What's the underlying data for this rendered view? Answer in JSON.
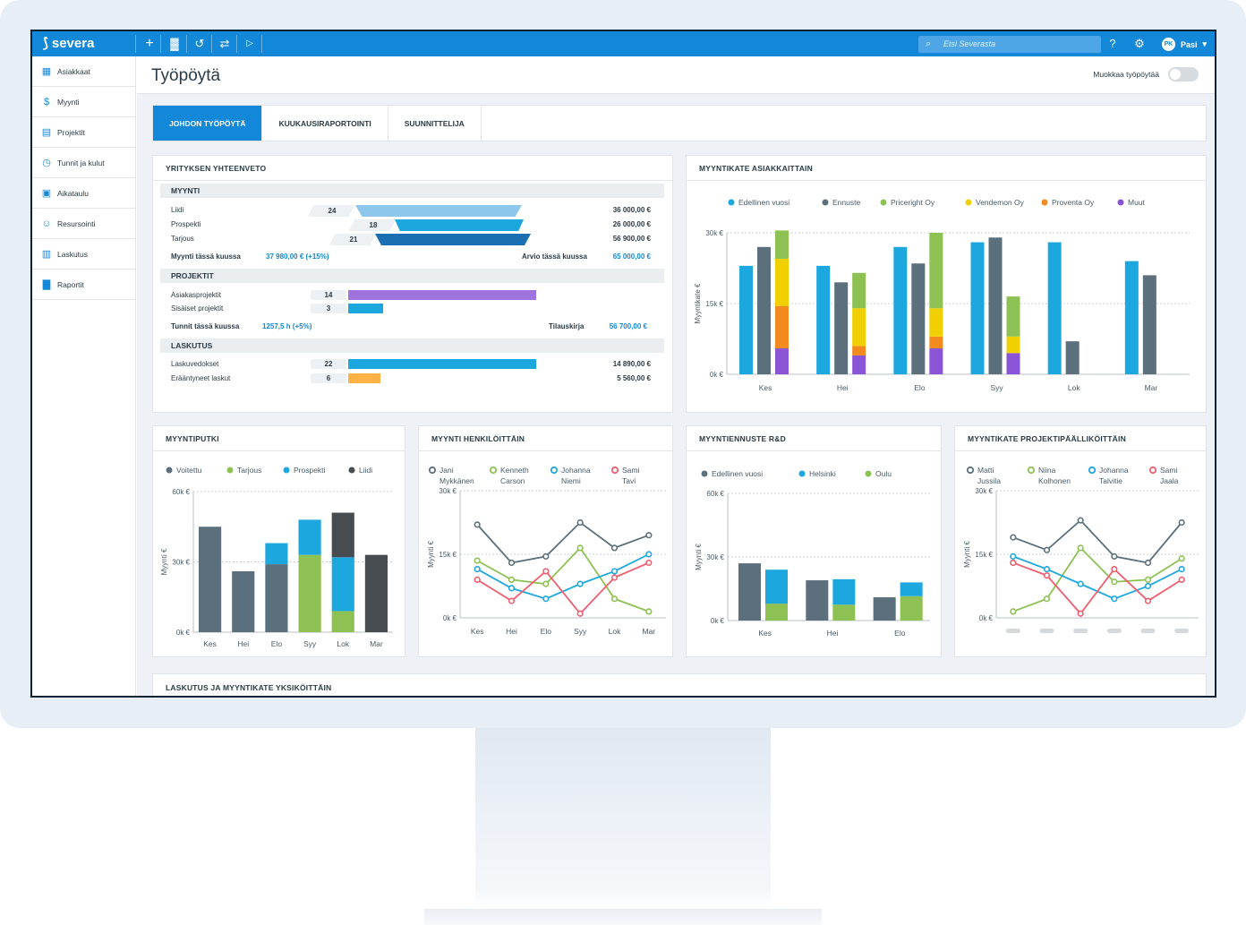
{
  "app": {
    "name": "severa"
  },
  "topbar": {
    "search_placeholder": "Etsi Severasta",
    "user_initials": "PK",
    "user_name": "Pasi"
  },
  "sidebar": {
    "items": [
      {
        "label": "Asiakkaat",
        "icon": "building-icon"
      },
      {
        "label": "Myynti",
        "icon": "dollar-icon"
      },
      {
        "label": "Projektit",
        "icon": "folder-icon"
      },
      {
        "label": "Tunnit ja kulut",
        "icon": "clock-icon"
      },
      {
        "label": "Aikataulu",
        "icon": "calendar-icon"
      },
      {
        "label": "Resursointi",
        "icon": "people-icon"
      },
      {
        "label": "Laskutus",
        "icon": "invoice-icon"
      },
      {
        "label": "Raportit",
        "icon": "report-icon"
      }
    ]
  },
  "page": {
    "title": "Työpöytä",
    "edit_label": "Muokkaa työpöytää"
  },
  "tabs": [
    "JOHDON TYÖPÖYTÄ",
    "KUUKAUSIRAPORTOINTI",
    "SUUNNITTELIJA"
  ],
  "summary": {
    "title": "YRITYKSEN YHTEENVETO",
    "sales": {
      "header": "MYYNTI",
      "rows": [
        {
          "label": "Liidi",
          "count": "24",
          "value": "36 000,00 €",
          "fill": 0.62
        },
        {
          "label": "Prospekti",
          "count": "18",
          "value": "26 000,00 €",
          "fill": 0.48
        },
        {
          "label": "Tarjous",
          "count": "21",
          "value": "56 900,00 €",
          "fill": 0.58
        }
      ],
      "month_label": "Myynti tässä kuussa",
      "month_value": "37 980,00 € (+15%)",
      "estimate_label": "Arvio tässä kuussa",
      "estimate_value": "65 000,00 €"
    },
    "projects": {
      "header": "PROJEKTIT",
      "rows": [
        {
          "label": "Asiakasprojektit",
          "count": "14",
          "fill": 0.75
        },
        {
          "label": "Sisäiset projektit",
          "count": "3",
          "fill": 0.14
        }
      ],
      "hours_label": "Tunnit tässä kuussa",
      "hours_value": "1257,5 h (+5%)",
      "orders_label": "Tilauskirja",
      "orders_value": "56 700,00 €"
    },
    "billing": {
      "header": "LASKUTUS",
      "rows": [
        {
          "label": "Laskuvedokset",
          "count": "22",
          "value": "14 890,00 €",
          "fill": 0.75
        },
        {
          "label": "Erääntyneet laskut",
          "count": "6",
          "value": "5 560,00 €",
          "fill": 0.13
        }
      ]
    }
  },
  "colors": {
    "blue": "#1da7df",
    "slate": "#5b6f7c",
    "green": "#8dc153",
    "yellow": "#f0d000",
    "orange": "#f28a1d",
    "purple": "#8a54d6",
    "dark": "#474c50",
    "red": "#ef5e6e",
    "navy": "#1a6fb3",
    "light_blue": "#8ec7ec"
  },
  "charts": {
    "customer_margin": {
      "title": "MYYNTIKATE ASIAKKAITTAIN",
      "type": "bar",
      "legend": [
        "Edellinen vuosi",
        "Ennuste",
        "Priceright Oy",
        "Vendemon Oy",
        "Proventa Oy",
        "Muut"
      ],
      "categories": [
        "Kes",
        "Hei",
        "Elo",
        "Syy",
        "Lok",
        "Mar"
      ],
      "yticks": [
        "0k €",
        "15k €",
        "30k €"
      ],
      "ylabel": "Myyntikate €",
      "ylim": [
        0,
        30000
      ],
      "series": [
        {
          "name": "Edellinen vuosi",
          "values": [
            23000,
            23000,
            27000,
            28000,
            28000,
            24000
          ]
        },
        {
          "name": "Ennuste",
          "values": [
            27000,
            19500,
            23500,
            29000,
            7000,
            21000
          ]
        },
        {
          "name": "Priceright Oy",
          "values": [
            6000,
            7500,
            16000,
            8500,
            0,
            0
          ]
        },
        {
          "name": "Vendemon Oy",
          "values": [
            10000,
            8000,
            6000,
            3500,
            0,
            0
          ]
        },
        {
          "name": "Proventa Oy",
          "values": [
            9000,
            2000,
            2500,
            0,
            0,
            0
          ]
        },
        {
          "name": "Muut",
          "values": [
            5500,
            4000,
            5500,
            4500,
            0,
            0
          ]
        }
      ]
    },
    "pipeline": {
      "title": "MYYNTIPUTKI",
      "type": "bar",
      "legend": [
        "Voitettu",
        "Tarjous",
        "Prospekti",
        "Liidi"
      ],
      "categories": [
        "Kes",
        "Hei",
        "Elo",
        "Syy",
        "Lok",
        "Mar"
      ],
      "yticks": [
        "0k €",
        "30k €",
        "60k €"
      ],
      "ylabel": "Myynti €",
      "ylim": [
        0,
        60000
      ],
      "series": [
        {
          "name": "Voitettu",
          "values": [
            45000,
            26000,
            29000,
            0,
            0,
            0
          ]
        },
        {
          "name": "Tarjous",
          "values": [
            0,
            0,
            0,
            33000,
            9000,
            0
          ]
        },
        {
          "name": "Prospekti",
          "values": [
            0,
            0,
            9000,
            15000,
            23000,
            0
          ]
        },
        {
          "name": "Liidi",
          "values": [
            0,
            0,
            0,
            0,
            19000,
            33000
          ]
        }
      ]
    },
    "per_person": {
      "title": "MYYNTI HENKILÖITTÄIN",
      "type": "line",
      "legend": [
        [
          "Jani",
          "Mykkänen"
        ],
        [
          "Kenneth",
          "Carson"
        ],
        [
          "Johanna",
          "Niemi"
        ],
        [
          "Sami",
          "Tavi"
        ]
      ],
      "categories": [
        "Kes",
        "Hei",
        "Elo",
        "Syy",
        "Lok",
        "Mar"
      ],
      "yticks": [
        "0k €",
        "15k €",
        "30k €"
      ],
      "ylabel": "Myynti €",
      "ylim": [
        0,
        30000
      ],
      "series": [
        {
          "name": "Jani Mykkänen",
          "values": [
            22000,
            13000,
            14500,
            22500,
            16500,
            19500
          ]
        },
        {
          "name": "Kenneth Carson",
          "values": [
            13500,
            9000,
            8000,
            16500,
            4500,
            1500
          ]
        },
        {
          "name": "Johanna Niemi",
          "values": [
            11500,
            7000,
            4500,
            8000,
            11000,
            15000
          ]
        },
        {
          "name": "Sami Tavi",
          "values": [
            9000,
            4000,
            11000,
            1000,
            9500,
            13000
          ]
        }
      ]
    },
    "forecast": {
      "title": "MYYNTIENNUSTE R&D",
      "type": "bar",
      "legend": [
        "Edellinen vuosi",
        "Helsinki",
        "Oulu"
      ],
      "categories": [
        "Kes",
        "Hei",
        "Elo"
      ],
      "yticks": [
        "0k €",
        "30k €",
        "60k €"
      ],
      "ylabel": "Myynti €",
      "ylim": [
        0,
        60000
      ],
      "series": [
        {
          "name": "Edellinen vuosi",
          "values": [
            27000,
            19000,
            11000
          ]
        },
        {
          "name": "Helsinki",
          "values": [
            16000,
            12000,
            6500
          ]
        },
        {
          "name": "Oulu",
          "values": [
            8000,
            7500,
            11500
          ]
        }
      ]
    },
    "pm_margin": {
      "title": "MYYNTIKATE PROJEKTIPÄÄLLIKÖITTÄIN",
      "type": "line",
      "legend": [
        [
          "Matti",
          "Jussila"
        ],
        [
          "Niina",
          "Kolhonen"
        ],
        [
          "Johanna",
          "Talvitie"
        ],
        [
          "Sami",
          "Jaala"
        ]
      ],
      "categories": [
        "",
        "",
        "",
        "",
        "",
        ""
      ],
      "yticks": [
        "0k €",
        "15k €",
        "30k €"
      ],
      "ylabel": "Myynti €",
      "ylim": [
        0,
        30000
      ],
      "series": [
        {
          "name": "Matti Jussila",
          "values": [
            19000,
            16000,
            23000,
            14500,
            13000,
            22500
          ]
        },
        {
          "name": "Niina Kolhonen",
          "values": [
            1500,
            4500,
            16500,
            8500,
            9000,
            14000
          ]
        },
        {
          "name": "Johanna Talvitie",
          "values": [
            14500,
            11500,
            8000,
            4500,
            7500,
            11500
          ]
        },
        {
          "name": "Sami Jaala",
          "values": [
            13000,
            10000,
            1000,
            11500,
            4000,
            9000
          ]
        }
      ]
    }
  },
  "bottom_card": {
    "title": "LASKUTUS JA MYYNTIKATE YKSIKÖITTÄIN"
  }
}
